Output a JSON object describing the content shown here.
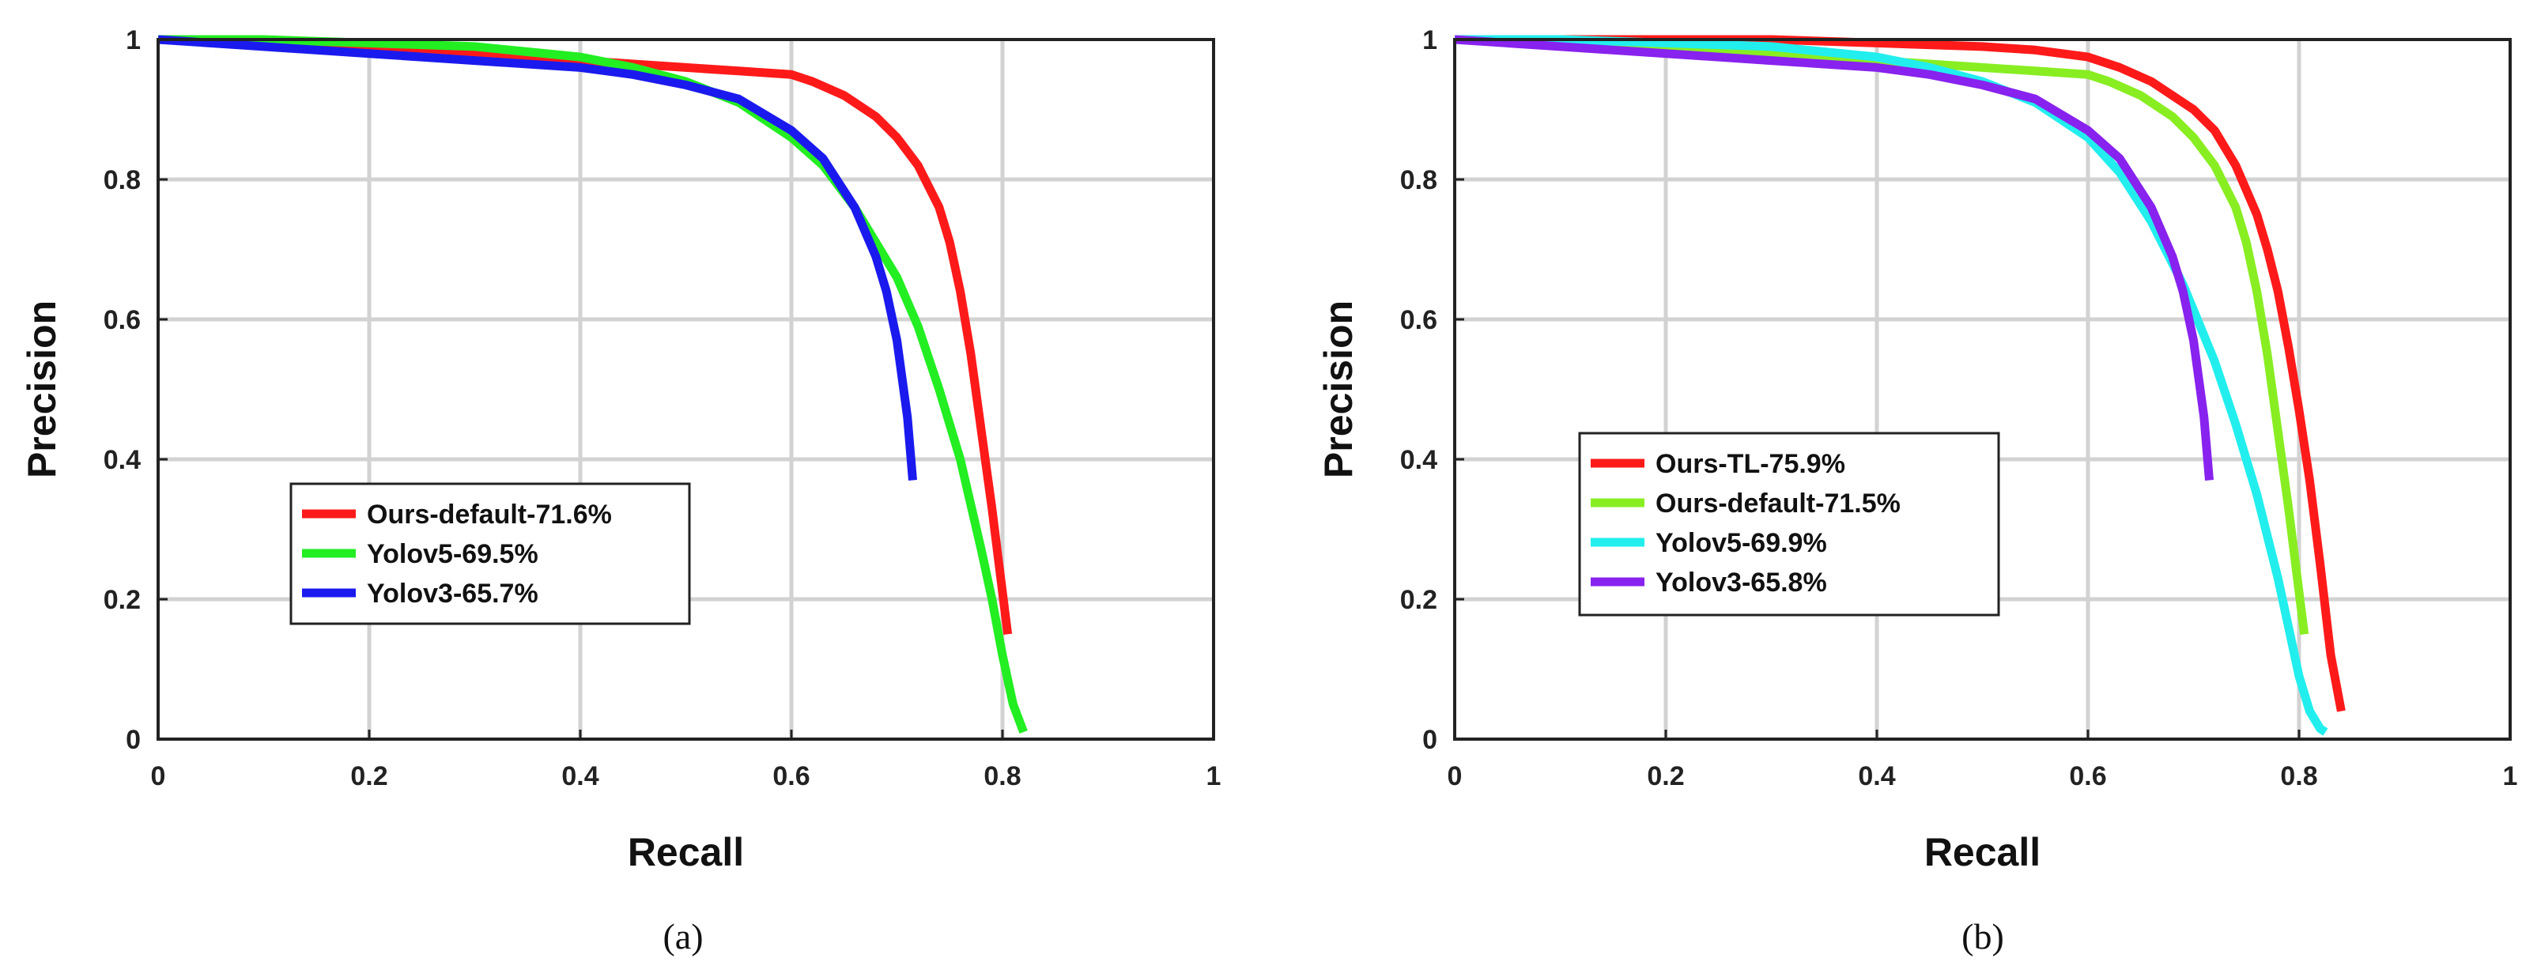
{
  "chart_data": [
    {
      "type": "line",
      "caption": "(a)",
      "xlabel": "Recall",
      "ylabel": "Precision",
      "xlim": [
        0,
        1
      ],
      "ylim": [
        0,
        1
      ],
      "xticks": [
        "0",
        "0.2",
        "0.4",
        "0.6",
        "0.8",
        "1"
      ],
      "yticks": [
        "0",
        "0.2",
        "0.4",
        "0.6",
        "0.8",
        "1"
      ],
      "grid": true,
      "legend_position": "lower-left",
      "series": [
        {
          "name": "Ours-default-71.6%",
          "color": "#ff1a1a",
          "x": [
            0,
            0.1,
            0.2,
            0.3,
            0.4,
            0.5,
            0.55,
            0.6,
            0.62,
            0.65,
            0.68,
            0.7,
            0.72,
            0.74,
            0.75,
            0.76,
            0.77,
            0.78,
            0.79,
            0.8,
            0.805
          ],
          "y": [
            1,
            0.995,
            0.99,
            0.98,
            0.97,
            0.96,
            0.955,
            0.95,
            0.94,
            0.92,
            0.89,
            0.86,
            0.82,
            0.76,
            0.71,
            0.64,
            0.55,
            0.44,
            0.33,
            0.21,
            0.15
          ]
        },
        {
          "name": "Yolov5-69.5%",
          "color": "#22ee22",
          "x": [
            0,
            0.1,
            0.2,
            0.3,
            0.4,
            0.45,
            0.5,
            0.55,
            0.6,
            0.63,
            0.66,
            0.7,
            0.72,
            0.74,
            0.76,
            0.78,
            0.79,
            0.8,
            0.81,
            0.82
          ],
          "y": [
            1,
            1,
            0.995,
            0.99,
            0.975,
            0.96,
            0.94,
            0.91,
            0.86,
            0.82,
            0.76,
            0.66,
            0.59,
            0.5,
            0.4,
            0.27,
            0.2,
            0.12,
            0.05,
            0.01
          ]
        },
        {
          "name": "Yolov3-65.7%",
          "color": "#1a1aee",
          "x": [
            0,
            0.1,
            0.2,
            0.3,
            0.4,
            0.45,
            0.5,
            0.55,
            0.6,
            0.63,
            0.66,
            0.68,
            0.69,
            0.7,
            0.71,
            0.715
          ],
          "y": [
            1,
            0.99,
            0.98,
            0.97,
            0.96,
            0.95,
            0.935,
            0.915,
            0.87,
            0.83,
            0.76,
            0.69,
            0.64,
            0.57,
            0.46,
            0.37
          ]
        }
      ]
    },
    {
      "type": "line",
      "caption": "(b)",
      "xlabel": "Recall",
      "ylabel": "Precision",
      "xlim": [
        0,
        1
      ],
      "ylim": [
        0,
        1
      ],
      "xticks": [
        "0",
        "0.2",
        "0.4",
        "0.6",
        "0.8",
        "1"
      ],
      "yticks": [
        "0",
        "0.2",
        "0.4",
        "0.6",
        "0.8",
        "1"
      ],
      "grid": true,
      "legend_position": "center-left",
      "series": [
        {
          "name": "Ours-TL-75.9%",
          "color": "#ff1a1a",
          "x": [
            0,
            0.1,
            0.2,
            0.3,
            0.4,
            0.5,
            0.55,
            0.6,
            0.63,
            0.66,
            0.7,
            0.72,
            0.74,
            0.76,
            0.77,
            0.78,
            0.79,
            0.8,
            0.81,
            0.82,
            0.83,
            0.84
          ],
          "y": [
            1,
            1,
            1,
            1,
            0.995,
            0.99,
            0.985,
            0.975,
            0.96,
            0.94,
            0.9,
            0.87,
            0.82,
            0.75,
            0.7,
            0.64,
            0.56,
            0.47,
            0.37,
            0.25,
            0.12,
            0.04
          ]
        },
        {
          "name": "Ours-default-71.5%",
          "color": "#88ee22",
          "x": [
            0,
            0.1,
            0.2,
            0.3,
            0.4,
            0.5,
            0.55,
            0.6,
            0.62,
            0.65,
            0.68,
            0.7,
            0.72,
            0.74,
            0.75,
            0.76,
            0.77,
            0.78,
            0.79,
            0.8,
            0.805
          ],
          "y": [
            1,
            0.995,
            0.99,
            0.98,
            0.97,
            0.96,
            0.955,
            0.95,
            0.94,
            0.92,
            0.89,
            0.86,
            0.82,
            0.76,
            0.71,
            0.64,
            0.55,
            0.44,
            0.33,
            0.21,
            0.15
          ]
        },
        {
          "name": "Yolov5-69.9%",
          "color": "#22eeee",
          "x": [
            0,
            0.1,
            0.2,
            0.3,
            0.4,
            0.45,
            0.5,
            0.55,
            0.6,
            0.63,
            0.66,
            0.69,
            0.72,
            0.74,
            0.76,
            0.78,
            0.79,
            0.8,
            0.81,
            0.82,
            0.825
          ],
          "y": [
            1,
            1,
            0.995,
            0.99,
            0.975,
            0.96,
            0.94,
            0.91,
            0.86,
            0.81,
            0.74,
            0.65,
            0.54,
            0.45,
            0.35,
            0.23,
            0.16,
            0.09,
            0.04,
            0.015,
            0.01
          ]
        },
        {
          "name": "Yolov3-65.8%",
          "color": "#8822ee",
          "x": [
            0,
            0.1,
            0.2,
            0.3,
            0.4,
            0.45,
            0.5,
            0.55,
            0.6,
            0.63,
            0.66,
            0.68,
            0.69,
            0.7,
            0.71,
            0.715
          ],
          "y": [
            1,
            0.99,
            0.98,
            0.97,
            0.96,
            0.95,
            0.935,
            0.915,
            0.87,
            0.83,
            0.76,
            0.69,
            0.64,
            0.57,
            0.46,
            0.37
          ]
        }
      ]
    }
  ]
}
